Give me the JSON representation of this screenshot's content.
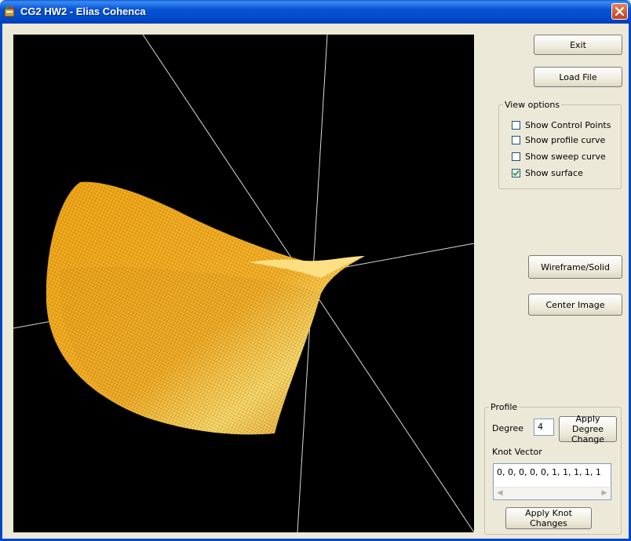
{
  "window": {
    "title": "CG2 HW2 - Elias Cohenca"
  },
  "buttons": {
    "exit": "Exit",
    "load_file": "Load File",
    "wireframe_solid": "Wireframe/Solid",
    "center_image": "Center Image"
  },
  "view_options": {
    "title": "View options",
    "items": [
      {
        "label": "Show Control Points",
        "checked": false
      },
      {
        "label": "Show profile curve",
        "checked": false
      },
      {
        "label": "Show sweep curve",
        "checked": false
      },
      {
        "label": "Show surface",
        "checked": true
      }
    ]
  },
  "profile": {
    "title": "Profile",
    "degree_label": "Degree",
    "degree_value": "4",
    "apply_degree_label": "Apply Degree Change",
    "knot_label": "Knot Vector",
    "knot_value": "0, 0, 0, 0, 0, 1, 1, 1, 1, 1",
    "apply_knot_label": "Apply Knot Changes"
  },
  "icons": {
    "app": "app-icon",
    "close": "close-icon"
  },
  "colors": {
    "surface": "#f0a818",
    "surface_highlight": "#ffe070",
    "background": "#000000",
    "axes": "#d8d8d8"
  }
}
